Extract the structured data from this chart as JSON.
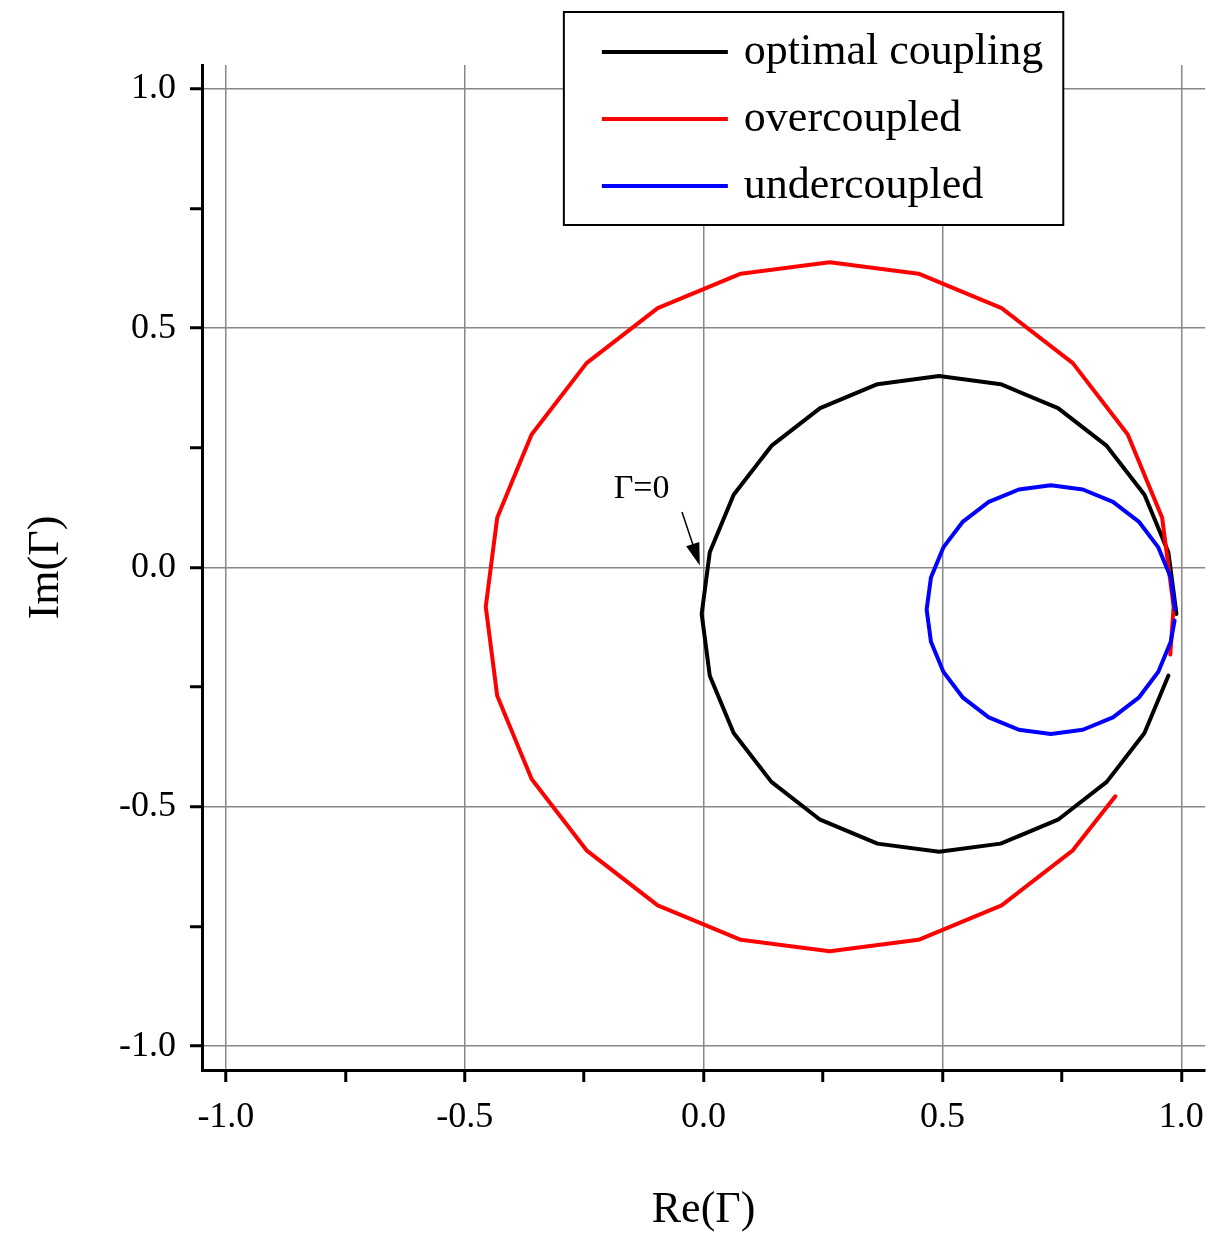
{
  "chart_data": {
    "type": "line",
    "xlabel": "Re(Γ)",
    "ylabel": "Im(Γ)",
    "xlim": [
      -1.05,
      1.05
    ],
    "ylim": [
      -1.05,
      1.05
    ],
    "xticks": [
      {
        "value": -1,
        "label": "-1.0"
      },
      {
        "value": -0.75,
        "label": null
      },
      {
        "value": -0.5,
        "label": "-0.5"
      },
      {
        "value": -0.25,
        "label": null
      },
      {
        "value": 0,
        "label": "0.0"
      },
      {
        "value": 0.25,
        "label": null
      },
      {
        "value": 0.5,
        "label": "0.5"
      },
      {
        "value": 0.75,
        "label": null
      },
      {
        "value": 1,
        "label": "1.0"
      }
    ],
    "yticks": [
      {
        "value": -1,
        "label": "-1.0"
      },
      {
        "value": -0.75,
        "label": null
      },
      {
        "value": -0.5,
        "label": "-0.5"
      },
      {
        "value": -0.25,
        "label": null
      },
      {
        "value": 0,
        "label": "0.0"
      },
      {
        "value": 0.25,
        "label": null
      },
      {
        "value": 0.5,
        "label": "0.5"
      },
      {
        "value": 0.75,
        "label": null
      },
      {
        "value": 1,
        "label": "1.0"
      }
    ],
    "grid": true,
    "legend": "top",
    "marker": "none",
    "line_style": "solid",
    "annotations": [
      {
        "text": "Γ=0",
        "x": 0,
        "y": 0
      }
    ],
    "series": [
      {
        "name": "optimal coupling",
        "color": "#000000",
        "x": [
          0.99,
          0.973,
          0.923,
          0.844,
          0.742,
          0.622,
          0.493,
          0.364,
          0.244,
          0.142,
          0.063,
          0.013,
          -0.004,
          0.013,
          0.063,
          0.142,
          0.244,
          0.364,
          0.493,
          0.622,
          0.742,
          0.844,
          0.923,
          0.973
        ],
        "values": [
          -0.097,
          0.032,
          0.152,
          0.254,
          0.333,
          0.383,
          0.4,
          0.383,
          0.333,
          0.254,
          0.152,
          0.032,
          -0.097,
          -0.226,
          -0.346,
          -0.448,
          -0.527,
          -0.577,
          -0.594,
          -0.577,
          -0.527,
          -0.448,
          -0.346,
          -0.226
        ]
      },
      {
        "name": "overcoupled",
        "color": "#ff0000",
        "x": [
          0.977,
          0.984,
          0.96,
          0.888,
          0.773,
          0.624,
          0.45,
          0.264,
          0.078,
          -0.096,
          -0.245,
          -0.36,
          -0.432,
          -0.456,
          -0.432,
          -0.36,
          -0.245,
          -0.096,
          0.078,
          0.264,
          0.45,
          0.624,
          0.773,
          0.862
        ],
        "values": [
          -0.182,
          -0.082,
          0.104,
          0.278,
          0.427,
          0.542,
          0.614,
          0.638,
          0.614,
          0.542,
          0.427,
          0.278,
          0.104,
          -0.082,
          -0.268,
          -0.442,
          -0.591,
          -0.706,
          -0.778,
          -0.802,
          -0.778,
          -0.706,
          -0.591,
          -0.478
        ]
      },
      {
        "name": "undercoupled",
        "color": "#0000ff",
        "x": [
          0.987,
          0.978,
          0.952,
          0.911,
          0.857,
          0.794,
          0.727,
          0.66,
          0.597,
          0.543,
          0.502,
          0.476,
          0.467,
          0.476,
          0.502,
          0.543,
          0.597,
          0.66,
          0.727,
          0.794,
          0.857,
          0.911,
          0.952,
          0.978,
          0.986
        ],
        "values": [
          -0.088,
          -0.021,
          0.042,
          0.096,
          0.137,
          0.163,
          0.172,
          0.163,
          0.137,
          0.096,
          0.042,
          -0.021,
          -0.088,
          -0.155,
          -0.218,
          -0.272,
          -0.313,
          -0.339,
          -0.348,
          -0.339,
          -0.313,
          -0.272,
          -0.218,
          -0.155,
          -0.111
        ]
      }
    ]
  }
}
